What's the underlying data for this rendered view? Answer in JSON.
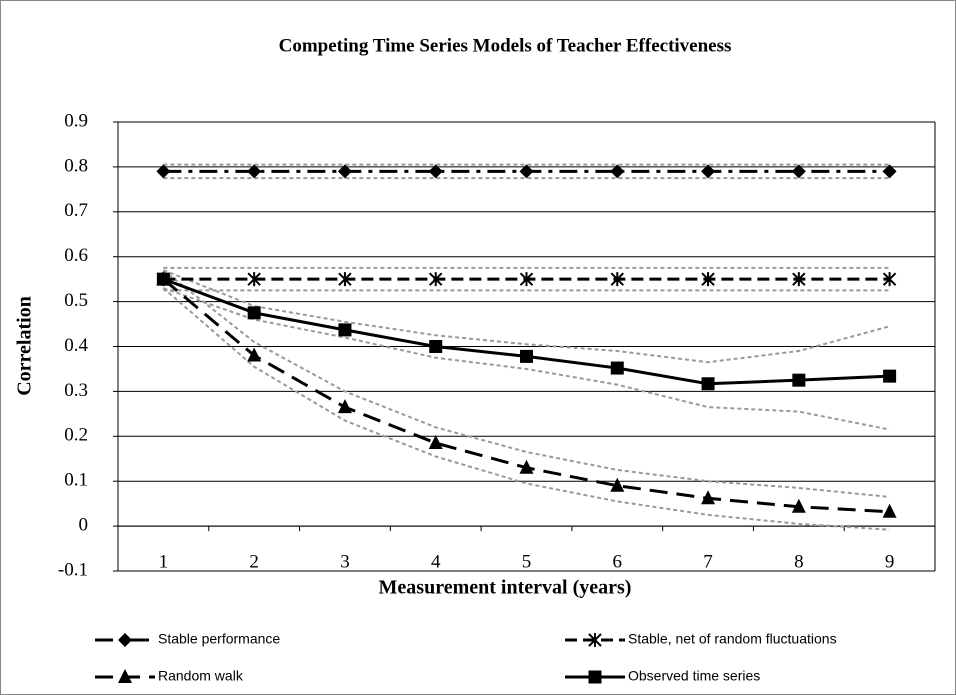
{
  "chart_data": {
    "type": "line",
    "title": "Competing Time Series Models of Teacher Effectiveness",
    "x_label": "Measurement interval (years)",
    "y_label": "Correlation",
    "categories": [
      "1",
      "2",
      "3",
      "4",
      "5",
      "6",
      "7",
      "8",
      "9"
    ],
    "ylim": [
      -0.1,
      0.9
    ],
    "yticks": [
      -0.1,
      0,
      0.1,
      0.2,
      0.3,
      0.4,
      0.5,
      0.6,
      0.7,
      0.8,
      0.9
    ],
    "grid": true,
    "legend": "bottom",
    "series": [
      {
        "name": "Stable performance",
        "color": "#000000",
        "marker": "diamond",
        "line_style": "dash-dot",
        "values": [
          0.79,
          0.79,
          0.79,
          0.79,
          0.79,
          0.79,
          0.79,
          0.79,
          0.79
        ]
      },
      {
        "name": "Stable, net of random fluctuations",
        "color": "#000000",
        "marker": "asterisk",
        "line_style": "dash",
        "values": [
          0.55,
          0.55,
          0.55,
          0.55,
          0.55,
          0.55,
          0.55,
          0.55,
          0.55
        ]
      },
      {
        "name": "Random walk",
        "color": "#000000",
        "marker": "triangle",
        "line_style": "long-dash",
        "values": [
          0.55,
          0.38,
          0.265,
          0.185,
          0.13,
          0.09,
          0.062,
          0.043,
          0.032
        ]
      },
      {
        "name": "Observed time series",
        "color": "#000000",
        "marker": "square",
        "line_style": "solid",
        "values": [
          0.55,
          0.475,
          0.437,
          0.4,
          0.378,
          0.352,
          0.317,
          0.325,
          0.334
        ]
      }
    ],
    "confidence_bands": [
      {
        "color": "#999999",
        "upper": [
          0.805,
          0.805,
          0.805,
          0.805,
          0.805,
          0.805,
          0.805,
          0.805,
          0.805
        ],
        "lower": [
          0.775,
          0.775,
          0.775,
          0.775,
          0.775,
          0.775,
          0.775,
          0.775,
          0.775
        ]
      },
      {
        "color": "#999999",
        "upper": [
          0.575,
          0.575,
          0.575,
          0.575,
          0.575,
          0.575,
          0.575,
          0.575,
          0.575
        ],
        "lower": [
          0.525,
          0.525,
          0.525,
          0.525,
          0.525,
          0.525,
          0.525,
          0.525,
          0.525
        ]
      },
      {
        "color": "#999999",
        "upper": [
          0.57,
          0.41,
          0.3,
          0.22,
          0.165,
          0.125,
          0.1,
          0.085,
          0.065
        ],
        "lower": [
          0.53,
          0.355,
          0.235,
          0.155,
          0.095,
          0.055,
          0.025,
          0.005,
          -0.008
        ]
      },
      {
        "color": "#999999",
        "upper": [
          0.57,
          0.49,
          0.455,
          0.425,
          0.405,
          0.39,
          0.365,
          0.39,
          0.445
        ],
        "lower": [
          0.53,
          0.46,
          0.42,
          0.375,
          0.35,
          0.315,
          0.265,
          0.255,
          0.215
        ]
      }
    ]
  }
}
